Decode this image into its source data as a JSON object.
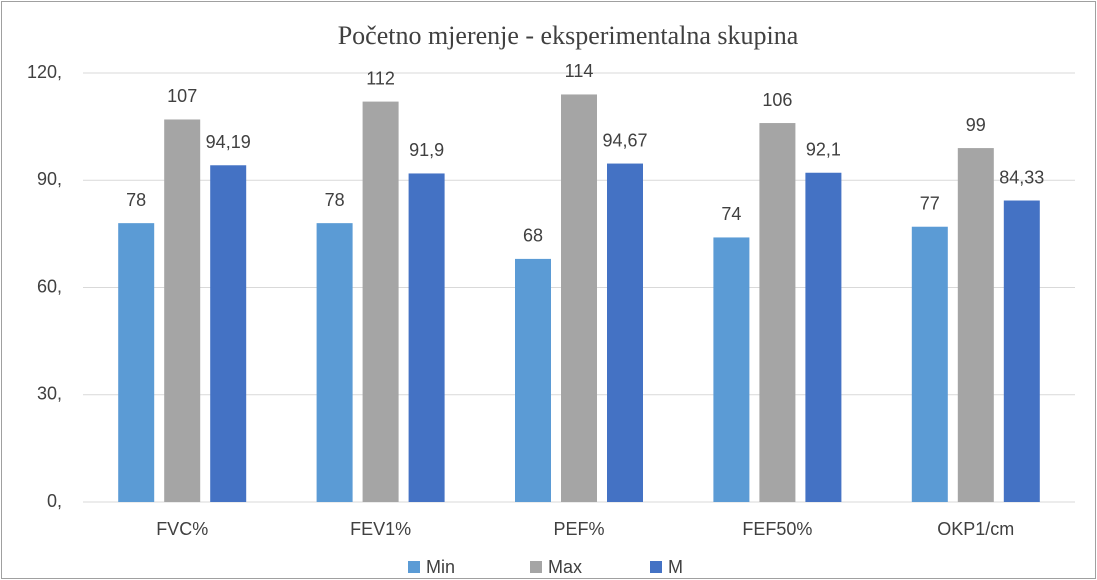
{
  "chart_data": {
    "type": "bar",
    "title": "Početno mjerenje - eksperimentalna skupina",
    "categories": [
      "FVC%",
      "FEV1%",
      "PEF%",
      "FEF50%",
      "OKP1/cm"
    ],
    "series": [
      {
        "name": "Min",
        "color": "#5b9bd5",
        "values": [
          78,
          78,
          68,
          74,
          77
        ],
        "value_labels": [
          "78",
          "78",
          "68",
          "74",
          "77"
        ]
      },
      {
        "name": "Max",
        "color": "#a5a5a5",
        "values": [
          107,
          112,
          114,
          106,
          99
        ],
        "value_labels": [
          "107",
          "112",
          "114",
          "106",
          "99"
        ]
      },
      {
        "name": "M",
        "color": "#4472c4",
        "values": [
          94.19,
          91.9,
          94.67,
          92.1,
          84.33
        ],
        "value_labels": [
          "94,19",
          "91,9",
          "94,67",
          "92,1",
          "84,33"
        ]
      }
    ],
    "ylim": [
      0,
      120
    ],
    "yticks": [
      {
        "value": 0,
        "label": "0,"
      },
      {
        "value": 30,
        "label": "30,"
      },
      {
        "value": 60,
        "label": "60,"
      },
      {
        "value": 90,
        "label": "90,"
      },
      {
        "value": 120,
        "label": "120,"
      }
    ],
    "grid": true,
    "legend": "bottom"
  }
}
